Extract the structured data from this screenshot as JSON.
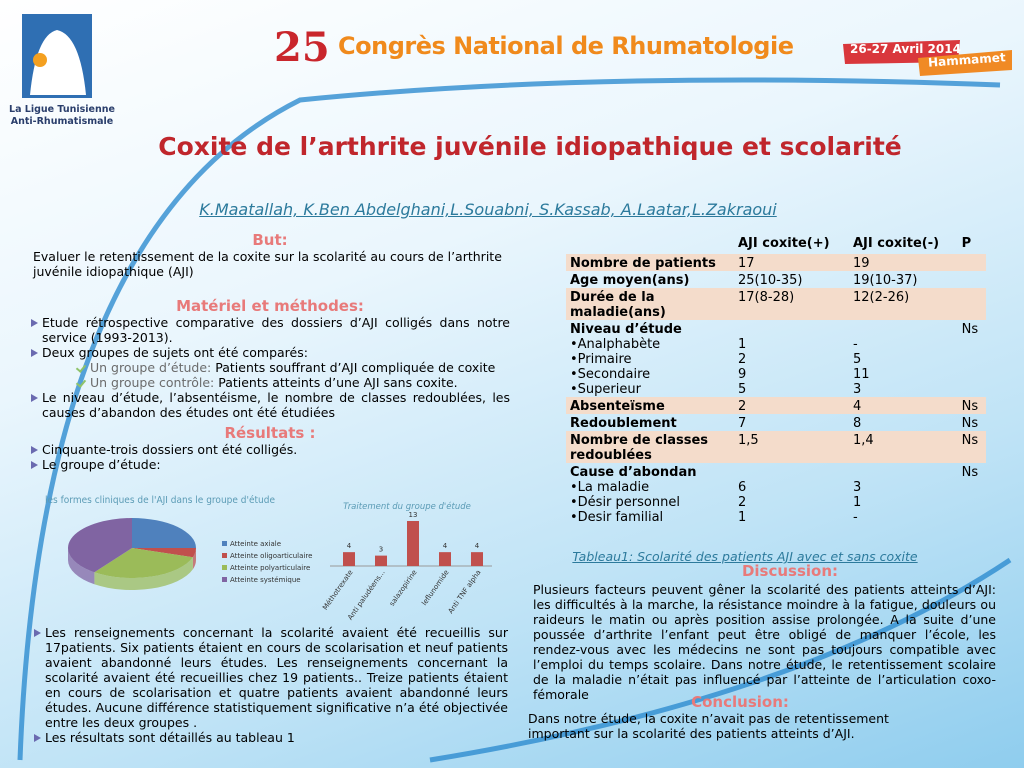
{
  "header": {
    "org_line1": "La Ligue Tunisienne",
    "org_line2": "Anti-Rhumatismale",
    "edition": "25",
    "congress": "Congrès National de Rhumatologie",
    "dates": "26-27 Avril 2014",
    "place": "Hammamet"
  },
  "title": "Coxite de l’arthrite juvénile idiopathique et scolarité",
  "authors": "K.Maatallah, K.Ben Abdelghani,L.Souabni, S.Kassab, A.Laatar,L.Zakraoui",
  "but": {
    "heading": "But:",
    "text": "Evaluer le retentissement de la coxite sur la scolarité au cours de l’arthrite juvénile idiopathique (AJI)"
  },
  "methods": {
    "heading": "Matériel et méthodes:",
    "items": [
      "Etude rétrospective comparative des dossiers d’AJI colligés dans notre service (1993-2013).",
      "Deux groupes de sujets ont été comparés:"
    ],
    "groups": [
      {
        "label": "Un groupe d’étude:",
        "text": "Patients souffrant d’AJI compliquée de coxite"
      },
      {
        "label": "Un groupe contrôle:",
        "text": "Patients atteints d’une AJI sans coxite."
      }
    ],
    "items_end": [
      "Le niveau d’étude, l’absentéisme, le nombre de classes redoublées, les causes d’abandon des études ont été étudiées"
    ]
  },
  "results": {
    "heading": "Résultats :",
    "items": [
      "Cinquante-trois dossiers ont été colligés.",
      "Le groupe d’étude:"
    ],
    "paragraphs": [
      "Les renseignements concernant la scolarité avaient été recueillis sur 17patients. Six patients étaient en cours de scolarisation et neuf patients avaient abandonné leurs études. Les renseignements concernant la scolarité avaient été recueillies chez 19 patients.. Treize patients étaient en cours de scolarisation et quatre patients avaient abandonné leurs études. Aucune différence statistiquement significative n’a été objectivée entre les deux groupes .",
      "Les résultats sont détaillés au tableau 1"
    ]
  },
  "chart_data": [
    {
      "type": "pie",
      "title": "les formes cliniques de l'AJI dans le groupe d'étude",
      "categories": [
        "Atteinte axiale",
        "Atteinte oligoarticulaire",
        "Atteinte polyarticulaire",
        "Atteinte systémique"
      ],
      "values": [
        25,
        5,
        30,
        40
      ],
      "colors": [
        "#4f81bd",
        "#c0504d",
        "#9bbb59",
        "#8064a2"
      ]
    },
    {
      "type": "bar",
      "title": "Traitement du groupe d'étude",
      "categories": [
        "Méthotrexate",
        "Anti paludéens...",
        "salazopirine",
        "leflunomide",
        "Anti TNF alpha"
      ],
      "values": [
        4,
        3,
        13,
        4,
        4
      ],
      "color": "#c0504d"
    }
  ],
  "table": {
    "headers": [
      "AJI coxite(+)",
      "AJI coxite(-)",
      "P"
    ],
    "rows": [
      {
        "label": "Nombre de patients",
        "values": [
          "17",
          "19",
          null
        ]
      },
      {
        "label": "Age moyen(ans)",
        "values": [
          "25(10-35)",
          "19(10-37)",
          null
        ]
      },
      {
        "label": "Durée de la maladie(ans)",
        "values": [
          "17(8-28)",
          "12(2-26)",
          null
        ]
      },
      {
        "label": "Niveau d’étude",
        "values": [
          null,
          null,
          "Ns"
        ]
      },
      {
        "label": "•Analphabète",
        "values": [
          "1",
          "-",
          null
        ]
      },
      {
        "label": "•Primaire",
        "values": [
          "2",
          "5",
          null
        ]
      },
      {
        "label": "•Secondaire",
        "values": [
          "9",
          "11",
          null
        ]
      },
      {
        "label": "•Superieur",
        "values": [
          "5",
          "3",
          null
        ]
      },
      {
        "label": "Absenteïsme",
        "values": [
          "2",
          "4",
          "Ns"
        ]
      },
      {
        "label": "Redoublement",
        "values": [
          "7",
          "8",
          "Ns"
        ]
      },
      {
        "label": "Nombre de classes redoublées",
        "values": [
          "1,5",
          "1,4",
          "Ns"
        ]
      },
      {
        "label": "Cause d’abondan",
        "values": [
          null,
          null,
          "Ns"
        ]
      },
      {
        "label": "•La maladie",
        "values": [
          "6",
          "3",
          null
        ]
      },
      {
        "label": "•Désir personnel",
        "values": [
          "2",
          "1",
          null
        ]
      },
      {
        "label": "•Desir familial",
        "values": [
          "1",
          "-",
          null
        ]
      }
    ],
    "caption": "Tableau1: Scolarité des patients AJI avec et sans coxite"
  },
  "discussion": {
    "heading": "Discussion:",
    "text": "Plusieurs facteurs peuvent gêner la scolarité des patients atteints d’AJI: les difficultés à la marche, la résistance moindre à la fatigue, douleurs ou raideurs le matin ou après position assise prolongée. A la suite d’une poussée d’arthrite l’enfant peut être obligé de manquer l’école, les rendez-vous avec les médecins ne sont pas toujours compatible avec l’emploi du temps scolaire. Dans notre étude, le retentissement scolaire de la maladie n’était pas influencé par l’atteinte de l’articulation coxo-fémorale"
  },
  "conclusion": {
    "heading": "Conclusion:",
    "text": "Dans notre étude, la coxite n’avait pas de retentissement important sur la scolarité des patients atteints d’AJI."
  }
}
